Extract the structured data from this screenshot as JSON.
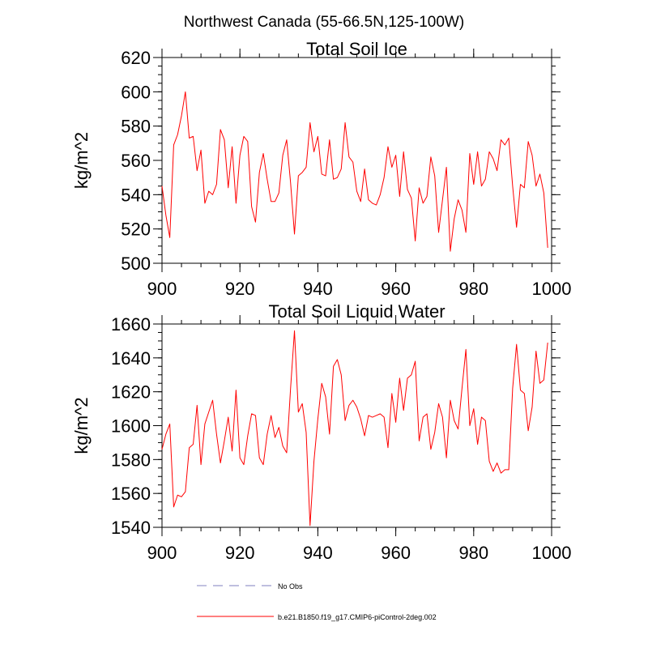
{
  "title": "Northwest Canada (55-66.5N,125-100W)",
  "chart_data": [
    {
      "type": "line",
      "title": "Total Soil Ice",
      "xlabel": "",
      "ylabel": "kg/m^2",
      "xlim": [
        900,
        1000
      ],
      "ylim": [
        500,
        620
      ],
      "xticks": [
        900,
        920,
        940,
        960,
        980,
        1000
      ],
      "yticks": [
        500,
        520,
        540,
        560,
        580,
        600,
        620
      ],
      "x_minor_step": 5,
      "y_minor_step": 5,
      "grid": false,
      "series": [
        {
          "name": "b.e21.B1850.f19_g17.CMIP6-piControl-2deg.002",
          "color": "#ff0000",
          "x_start": 900,
          "x_step": 1,
          "values": [
            545,
            528,
            515,
            569,
            575,
            586,
            600,
            573,
            574,
            554,
            566,
            535,
            542,
            540,
            546,
            578,
            572,
            544,
            568,
            535,
            563,
            574,
            571,
            533,
            524,
            553,
            564,
            549,
            536,
            536,
            541,
            563,
            572,
            547,
            517,
            551,
            553,
            556,
            582,
            565,
            574,
            552,
            551,
            572,
            549,
            550,
            555,
            582,
            562,
            559,
            542,
            536,
            555,
            537,
            535,
            534,
            540,
            550,
            568,
            556,
            563,
            539,
            565,
            543,
            538,
            513,
            544,
            535,
            539,
            562,
            551,
            518,
            537,
            556,
            507,
            526,
            537,
            531,
            518,
            564,
            546,
            565,
            545,
            549,
            565,
            561,
            554,
            572,
            569,
            573,
            545,
            521,
            546,
            544,
            571,
            563,
            545,
            552,
            541,
            509
          ]
        }
      ]
    },
    {
      "type": "line",
      "title": "Total Soil Liquid Water",
      "xlabel": "",
      "ylabel": "kg/m^2",
      "xlim": [
        900,
        1000
      ],
      "ylim": [
        1540,
        1660
      ],
      "xticks": [
        900,
        920,
        940,
        960,
        980,
        1000
      ],
      "yticks": [
        1540,
        1560,
        1580,
        1600,
        1620,
        1640,
        1660
      ],
      "x_minor_step": 5,
      "y_minor_step": 5,
      "grid": false,
      "series": [
        {
          "name": "b.e21.B1850.f19_g17.CMIP6-piControl-2deg.002",
          "color": "#ff0000",
          "x_start": 900,
          "x_step": 1,
          "values": [
            1586,
            1595,
            1601,
            1552,
            1559,
            1558,
            1561,
            1587,
            1589,
            1612,
            1577,
            1601,
            1608,
            1615,
            1595,
            1578,
            1591,
            1605,
            1585,
            1621,
            1581,
            1577,
            1594,
            1607,
            1606,
            1581,
            1577,
            1595,
            1606,
            1593,
            1599,
            1588,
            1584,
            1622,
            1656,
            1608,
            1613,
            1596,
            1541,
            1579,
            1604,
            1625,
            1617,
            1595,
            1635,
            1639,
            1630,
            1603,
            1612,
            1615,
            1611,
            1604,
            1594,
            1606,
            1605,
            1606,
            1607,
            1605,
            1587,
            1619,
            1602,
            1628,
            1609,
            1628,
            1630,
            1638,
            1591,
            1605,
            1607,
            1586,
            1596,
            1613,
            1605,
            1581,
            1615,
            1603,
            1598,
            1622,
            1645,
            1600,
            1610,
            1589,
            1605,
            1603,
            1579,
            1573,
            1578,
            1572,
            1574,
            1574,
            1622,
            1648,
            1621,
            1619,
            1597,
            1611,
            1644,
            1625,
            1627,
            1649
          ]
        }
      ]
    }
  ],
  "legend": {
    "placement": "bottom-center",
    "items": [
      {
        "label": "No Obs",
        "color": "#9999cc",
        "style": "dashed"
      },
      {
        "label": "b.e21.B1850.f19_g17.CMIP6-piControl-2deg.002",
        "color": "#ff0000",
        "style": "solid"
      }
    ]
  }
}
